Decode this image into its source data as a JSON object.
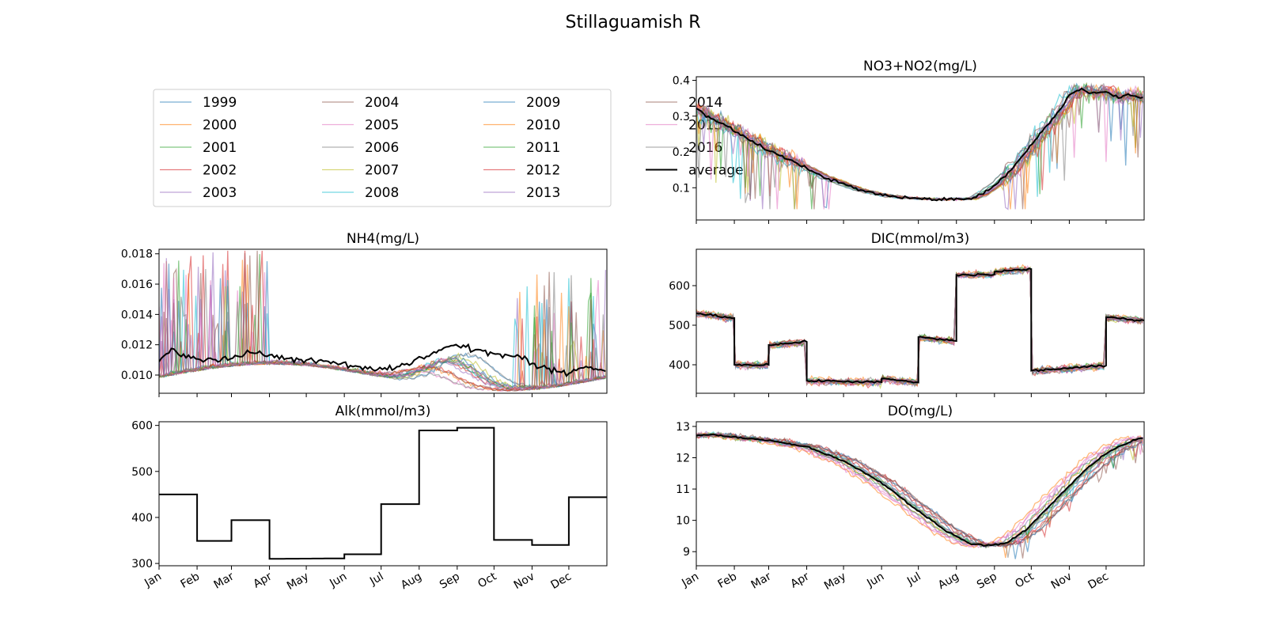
{
  "figure": {
    "title": "Stillaguamish R",
    "legend": {
      "entries": [
        "1999",
        "2000",
        "2001",
        "2002",
        "2003",
        "2004",
        "2005",
        "2006",
        "2007",
        "2008",
        "2009",
        "2010",
        "2011",
        "2012",
        "2013",
        "2014",
        "2015",
        "2016",
        "average"
      ],
      "placement": "top-left panel"
    },
    "month_labels": [
      "Jan",
      "Feb",
      "Mar",
      "Apr",
      "May",
      "Jun",
      "Jul",
      "Aug",
      "Sep",
      "Oct",
      "Nov",
      "Dec"
    ],
    "colors": [
      "#1f77b4",
      "#ff7f0e",
      "#2ca02c",
      "#d62728",
      "#9467bd",
      "#8c564b",
      "#e377c2",
      "#7f7f7f",
      "#bcbd22",
      "#17becf"
    ]
  },
  "chart_data": [
    {
      "id": "no3",
      "type": "line",
      "title": "NO3+NO2(mg/L)",
      "xlim": [
        1,
        366
      ],
      "ylim": [
        0.01,
        0.41
      ],
      "yticks": [
        0.1,
        0.2,
        0.3,
        0.4
      ],
      "ytick_labels": [
        "0.1",
        "0.2",
        "0.3",
        "0.4"
      ],
      "series_names": [
        "1999",
        "2000",
        "2001",
        "2002",
        "2003",
        "2004",
        "2005",
        "2006",
        "2007",
        "2008",
        "2009",
        "2010",
        "2011",
        "2012",
        "2013",
        "2014",
        "2015",
        "2016"
      ],
      "average_name": "average",
      "average": {
        "x": [
          1,
          15,
          32,
          46,
          60,
          75,
          91,
          105,
          121,
          135,
          152,
          166,
          182,
          196,
          213,
          225,
          235,
          245,
          258,
          274,
          288,
          300,
          305,
          315,
          325,
          335,
          345,
          355,
          366
        ],
        "y": [
          0.32,
          0.29,
          0.26,
          0.23,
          0.205,
          0.18,
          0.155,
          0.13,
          0.11,
          0.093,
          0.08,
          0.073,
          0.07,
          0.068,
          0.068,
          0.07,
          0.085,
          0.11,
          0.15,
          0.22,
          0.28,
          0.33,
          0.36,
          0.375,
          0.365,
          0.37,
          0.35,
          0.36,
          0.35
        ]
      }
    },
    {
      "id": "nh4",
      "type": "line",
      "title": "NH4(mg/L)",
      "xlim": [
        1,
        366
      ],
      "ylim": [
        0.0088,
        0.0183
      ],
      "yticks": [
        0.01,
        0.012,
        0.014,
        0.016,
        0.018
      ],
      "ytick_labels": [
        "0.010",
        "0.012",
        "0.014",
        "0.016",
        "0.018"
      ],
      "series_names": [
        "1999",
        "2000",
        "2001",
        "2002",
        "2003",
        "2004",
        "2005",
        "2006",
        "2007",
        "2008",
        "2009",
        "2010",
        "2011",
        "2012",
        "2013",
        "2014",
        "2015",
        "2016"
      ],
      "average_name": "average",
      "average": {
        "x": [
          1,
          10,
          20,
          35,
          50,
          70,
          80,
          91,
          110,
          130,
          152,
          170,
          190,
          205,
          220,
          235,
          245,
          255,
          265,
          280,
          295,
          305,
          320,
          335,
          350,
          366
        ],
        "y": [
          0.0108,
          0.0118,
          0.0113,
          0.0111,
          0.011,
          0.0113,
          0.0116,
          0.0112,
          0.0111,
          0.0109,
          0.0107,
          0.0104,
          0.0104,
          0.0108,
          0.0113,
          0.0118,
          0.012,
          0.0117,
          0.0116,
          0.0113,
          0.0112,
          0.0107,
          0.0103,
          0.0102,
          0.0106,
          0.0103
        ]
      }
    },
    {
      "id": "dic",
      "type": "line",
      "title": "DIC(mmol/m3)",
      "xlim": [
        1,
        366
      ],
      "ylim": [
        328,
        692
      ],
      "yticks": [
        400,
        500,
        600
      ],
      "ytick_labels": [
        "400",
        "500",
        "600"
      ],
      "series_names": [
        "1999",
        "2000",
        "2001",
        "2002",
        "2003",
        "2004",
        "2005",
        "2006",
        "2007",
        "2008",
        "2009",
        "2010",
        "2011",
        "2012",
        "2013",
        "2014",
        "2015",
        "2016"
      ],
      "average_name": "average",
      "average": {
        "steps": [
          {
            "x0": 1,
            "x1": 32,
            "y0": 530,
            "y1": 518
          },
          {
            "x0": 32,
            "x1": 60,
            "y0": 400,
            "y1": 400
          },
          {
            "x0": 60,
            "x1": 91,
            "y0": 450,
            "y1": 458
          },
          {
            "x0": 91,
            "x1": 152,
            "y0": 360,
            "y1": 356
          },
          {
            "x0": 152,
            "x1": 182,
            "y0": 365,
            "y1": 355
          },
          {
            "x0": 182,
            "x1": 213,
            "y0": 470,
            "y1": 460
          },
          {
            "x0": 213,
            "x1": 244,
            "y0": 627,
            "y1": 628
          },
          {
            "x0": 244,
            "x1": 274,
            "y0": 635,
            "y1": 642
          },
          {
            "x0": 274,
            "x1": 335,
            "y0": 385,
            "y1": 398
          },
          {
            "x0": 335,
            "x1": 366,
            "y0": 520,
            "y1": 512
          }
        ]
      }
    },
    {
      "id": "alk",
      "type": "line",
      "title": "Alk(mmol/m3)",
      "xlim": [
        1,
        366
      ],
      "ylim": [
        295,
        608
      ],
      "yticks": [
        300,
        400,
        500,
        600
      ],
      "ytick_labels": [
        "300",
        "400",
        "500",
        "600"
      ],
      "average_name": "average",
      "average": {
        "steps": [
          {
            "x0": 1,
            "x1": 32,
            "y0": 450,
            "y1": 450
          },
          {
            "x0": 32,
            "x1": 60,
            "y0": 349,
            "y1": 349
          },
          {
            "x0": 60,
            "x1": 91,
            "y0": 394,
            "y1": 394
          },
          {
            "x0": 91,
            "x1": 152,
            "y0": 310,
            "y1": 311
          },
          {
            "x0": 152,
            "x1": 182,
            "y0": 320,
            "y1": 320
          },
          {
            "x0": 182,
            "x1": 213,
            "y0": 429,
            "y1": 429
          },
          {
            "x0": 213,
            "x1": 244,
            "y0": 589,
            "y1": 589
          },
          {
            "x0": 244,
            "x1": 274,
            "y0": 595,
            "y1": 595
          },
          {
            "x0": 274,
            "x1": 305,
            "y0": 351,
            "y1": 351
          },
          {
            "x0": 305,
            "x1": 335,
            "y0": 340,
            "y1": 340
          },
          {
            "x0": 335,
            "x1": 366,
            "y0": 444,
            "y1": 444
          }
        ]
      }
    },
    {
      "id": "do",
      "type": "line",
      "title": "DO(mg/L)",
      "xlim": [
        1,
        366
      ],
      "ylim": [
        8.55,
        13.15
      ],
      "yticks": [
        9,
        10,
        11,
        12,
        13
      ],
      "ytick_labels": [
        "9",
        "10",
        "11",
        "12",
        "13"
      ],
      "series_names": [
        "1999",
        "2000",
        "2001",
        "2002",
        "2003",
        "2004",
        "2005",
        "2006",
        "2007",
        "2008",
        "2009",
        "2010",
        "2011",
        "2012",
        "2013",
        "2014",
        "2015",
        "2016"
      ],
      "average_name": "average",
      "average": {
        "x": [
          1,
          15,
          32,
          60,
          91,
          121,
          152,
          182,
          205,
          225,
          240,
          255,
          270,
          285,
          300,
          315,
          330,
          345,
          360,
          366
        ],
        "y": [
          12.7,
          12.75,
          12.65,
          12.55,
          12.35,
          11.9,
          11.2,
          10.3,
          9.65,
          9.25,
          9.2,
          9.3,
          9.7,
          10.3,
          10.9,
          11.5,
          12.0,
          12.35,
          12.6,
          12.6
        ]
      }
    }
  ]
}
